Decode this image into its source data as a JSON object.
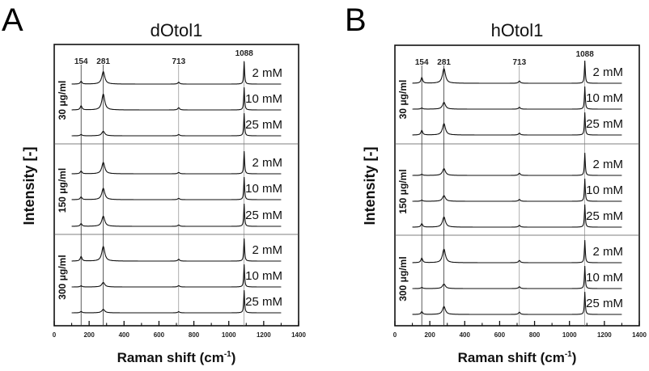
{
  "chart_data": [
    {
      "type": "line",
      "panel": "A",
      "title": "dOtol1",
      "xlabel": "Raman shift (cm",
      "xlabel_sup": "-1",
      "xlabel_close": ")",
      "ylabel": "Intensity [-]",
      "xlim": [
        0,
        1400
      ],
      "xticks": [
        0,
        200,
        400,
        600,
        800,
        1000,
        1200,
        1400
      ],
      "tick_labels": [
        "0",
        "200",
        "400",
        "600",
        "800",
        "1000",
        "1200",
        "1400"
      ],
      "peaks": [
        {
          "position": 154,
          "label": "154"
        },
        {
          "position": 281,
          "label": "281"
        },
        {
          "position": 713,
          "label": "713"
        },
        {
          "position": 1088,
          "label": "1088"
        }
      ],
      "groups": [
        {
          "label": "30 μg/ml",
          "series": [
            {
              "name": "2 mM",
              "peak_heights": [
                0.12,
                0.55,
                0.08,
                1.0
              ]
            },
            {
              "name": "10 mM",
              "peak_heights": [
                0.18,
                0.7,
                0.1,
                1.0
              ]
            },
            {
              "name": "25 mM",
              "peak_heights": [
                0.06,
                0.2,
                0.06,
                1.0
              ]
            }
          ]
        },
        {
          "label": "150 μg/ml",
          "series": [
            {
              "name": "2 mM",
              "peak_heights": [
                0.12,
                0.5,
                0.06,
                1.0
              ]
            },
            {
              "name": "10 mM",
              "peak_heights": [
                0.12,
                0.5,
                0.06,
                1.0
              ]
            },
            {
              "name": "25 mM",
              "peak_heights": [
                0.12,
                0.45,
                0.06,
                1.0
              ]
            }
          ]
        },
        {
          "label": "300 μg/ml",
          "series": [
            {
              "name": "2 mM",
              "peak_heights": [
                0.2,
                0.65,
                0.08,
                1.0
              ]
            },
            {
              "name": "10 mM",
              "peak_heights": [
                0.05,
                0.2,
                0.06,
                1.0
              ]
            },
            {
              "name": "25 mM",
              "peak_heights": [
                0.06,
                0.15,
                0.05,
                1.0
              ]
            }
          ]
        }
      ]
    },
    {
      "type": "line",
      "panel": "B",
      "title": "hOtol1",
      "xlabel": "Raman shift (cm",
      "xlabel_sup": "-1",
      "xlabel_close": ")",
      "ylabel": "Intensity [-]",
      "xlim": [
        0,
        1400
      ],
      "xticks": [
        0,
        200,
        400,
        600,
        800,
        1000,
        1200,
        1400
      ],
      "tick_labels": [
        "0",
        "200",
        "400",
        "600",
        "800",
        "1000",
        "1200",
        "1400"
      ],
      "peaks": [
        {
          "position": 154,
          "label": "154"
        },
        {
          "position": 281,
          "label": "281"
        },
        {
          "position": 713,
          "label": "713"
        },
        {
          "position": 1088,
          "label": "1088"
        }
      ],
      "groups": [
        {
          "label": "30 μg/ml",
          "series": [
            {
              "name": "2 mM",
              "peak_heights": [
                0.25,
                0.65,
                0.1,
                1.0
              ]
            },
            {
              "name": "10 mM",
              "peak_heights": [
                0.05,
                0.3,
                0.08,
                1.0
              ]
            },
            {
              "name": "25 mM",
              "peak_heights": [
                0.2,
                0.5,
                0.08,
                1.0
              ]
            }
          ]
        },
        {
          "label": "150 μg/ml",
          "series": [
            {
              "name": "2 mM",
              "peak_heights": [
                0.05,
                0.3,
                0.1,
                1.0
              ]
            },
            {
              "name": "10 mM",
              "peak_heights": [
                0.05,
                0.25,
                0.08,
                1.0
              ]
            },
            {
              "name": "25 mM",
              "peak_heights": [
                0.15,
                0.45,
                0.08,
                1.0
              ]
            }
          ]
        },
        {
          "label": "300 μg/ml",
          "series": [
            {
              "name": "2 mM",
              "peak_heights": [
                0.2,
                0.6,
                0.1,
                1.0
              ]
            },
            {
              "name": "10 mM",
              "peak_heights": [
                0.05,
                0.2,
                0.08,
                1.0
              ]
            },
            {
              "name": "25 mM",
              "peak_heights": [
                0.12,
                0.35,
                0.1,
                1.0
              ]
            }
          ]
        }
      ]
    }
  ]
}
